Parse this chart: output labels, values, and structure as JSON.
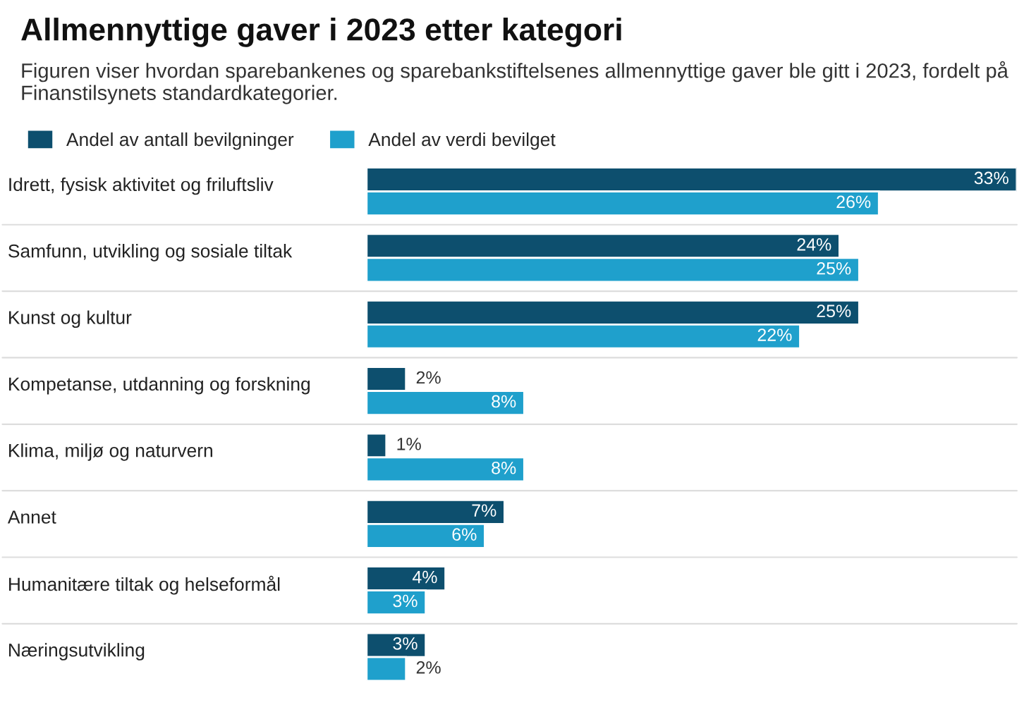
{
  "chart_data": {
    "type": "bar",
    "orientation": "horizontal",
    "title": "Allmennyttige gaver i 2023 etter kategori",
    "subtitle": "Figuren viser hvordan sparebankenes og sparebankstiftelsenes allmennyttige gaver ble gitt i 2023, fordelt på Finanstilsynets standardkategorier.",
    "categories": [
      "Idrett, fysisk aktivitet og friluftsliv",
      "Samfunn, utvikling og sosiale tiltak",
      "Kunst og kultur",
      "Kompetanse, utdanning og forskning",
      "Klima, miljø og naturvern",
      "Annet",
      "Humanitære tiltak og helseformål",
      "Næringsutvikling"
    ],
    "series": [
      {
        "name": "Andel av antall bevilgninger",
        "color": "#0d4f6e",
        "values": [
          33,
          24,
          25,
          2,
          1,
          7,
          4,
          3
        ],
        "value_labels": [
          "33%",
          "24%",
          "25%",
          "2%",
          "1%",
          "7%",
          "4%",
          "3%"
        ]
      },
      {
        "name": "Andel av verdi bevilget",
        "color": "#1fa0cc",
        "values": [
          26,
          25,
          22,
          8,
          8,
          6,
          3,
          2
        ],
        "value_labels": [
          "26%",
          "25%",
          "22%",
          "8%",
          "8%",
          "6%",
          "3%",
          "2%"
        ]
      }
    ],
    "legend": "top left"
  }
}
